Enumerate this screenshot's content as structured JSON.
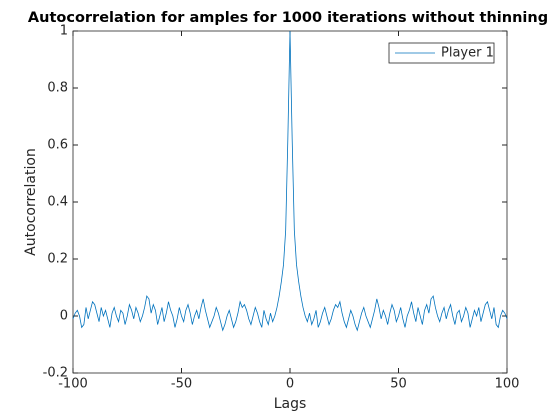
{
  "chart_data": {
    "type": "line",
    "title": "Autocorrelation for amples for 1000 iterations without thinning",
    "xlabel": "Lags",
    "ylabel": "Autocorrelation",
    "x": [
      -100,
      -99,
      -98,
      -97,
      -96,
      -95,
      -94,
      -93,
      -92,
      -91,
      -90,
      -89,
      -88,
      -87,
      -86,
      -85,
      -84,
      -83,
      -82,
      -81,
      -80,
      -79,
      -78,
      -77,
      -76,
      -75,
      -74,
      -73,
      -72,
      -71,
      -70,
      -69,
      -68,
      -67,
      -66,
      -65,
      -64,
      -63,
      -62,
      -61,
      -60,
      -59,
      -58,
      -57,
      -56,
      -55,
      -54,
      -53,
      -52,
      -51,
      -50,
      -49,
      -48,
      -47,
      -46,
      -45,
      -44,
      -43,
      -42,
      -41,
      -40,
      -39,
      -38,
      -37,
      -36,
      -35,
      -34,
      -33,
      -32,
      -31,
      -30,
      -29,
      -28,
      -27,
      -26,
      -25,
      -24,
      -23,
      -22,
      -21,
      -20,
      -19,
      -18,
      -17,
      -16,
      -15,
      -14,
      -13,
      -12,
      -11,
      -10,
      -9,
      -8,
      -7,
      -6,
      -5,
      -4,
      -3,
      -2,
      -1,
      0,
      1,
      2,
      3,
      4,
      5,
      6,
      7,
      8,
      9,
      10,
      11,
      12,
      13,
      14,
      15,
      16,
      17,
      18,
      19,
      20,
      21,
      22,
      23,
      24,
      25,
      26,
      27,
      28,
      29,
      30,
      31,
      32,
      33,
      34,
      35,
      36,
      37,
      38,
      39,
      40,
      41,
      42,
      43,
      44,
      45,
      46,
      47,
      48,
      49,
      50,
      51,
      52,
      53,
      54,
      55,
      56,
      57,
      58,
      59,
      60,
      61,
      62,
      63,
      64,
      65,
      66,
      67,
      68,
      69,
      70,
      71,
      72,
      73,
      74,
      75,
      76,
      77,
      78,
      79,
      80,
      81,
      82,
      83,
      84,
      85,
      86,
      87,
      88,
      89,
      90,
      91,
      92,
      93,
      94,
      95,
      96,
      97,
      98,
      99,
      100
    ],
    "series": [
      {
        "name": "Player 1",
        "color": "#0072bd",
        "values": [
          -0.01,
          0.01,
          0.02,
          0.0,
          -0.04,
          -0.03,
          0.03,
          -0.01,
          0.02,
          0.05,
          0.04,
          0.01,
          -0.02,
          0.03,
          0.0,
          0.02,
          -0.01,
          -0.04,
          0.01,
          0.03,
          0.0,
          -0.02,
          0.02,
          0.01,
          -0.03,
          0.0,
          0.04,
          0.02,
          -0.01,
          0.03,
          0.01,
          -0.02,
          0.0,
          0.03,
          0.07,
          0.06,
          0.01,
          0.04,
          0.02,
          -0.03,
          0.0,
          0.03,
          -0.02,
          0.01,
          0.05,
          0.02,
          0.0,
          -0.04,
          -0.01,
          0.03,
          0.0,
          -0.02,
          0.02,
          0.04,
          0.01,
          -0.03,
          0.0,
          0.02,
          -0.01,
          0.03,
          0.06,
          0.02,
          -0.01,
          -0.04,
          -0.02,
          0.0,
          0.03,
          0.01,
          -0.02,
          -0.05,
          -0.03,
          0.0,
          0.02,
          -0.01,
          -0.04,
          -0.02,
          0.01,
          0.05,
          0.03,
          0.04,
          0.02,
          -0.01,
          -0.03,
          0.0,
          0.03,
          0.01,
          -0.02,
          -0.04,
          0.02,
          -0.01,
          -0.03,
          0.01,
          -0.02,
          0.0,
          0.03,
          0.07,
          0.12,
          0.18,
          0.3,
          0.62,
          1,
          0.62,
          0.3,
          0.18,
          0.12,
          0.07,
          0.03,
          0.0,
          -0.02,
          0.01,
          -0.03,
          -0.01,
          0.02,
          -0.04,
          -0.02,
          0.01,
          0.03,
          0.0,
          -0.03,
          -0.01,
          0.02,
          0.04,
          0.03,
          0.05,
          0.01,
          -0.02,
          -0.04,
          -0.01,
          0.02,
          0.0,
          -0.03,
          -0.05,
          -0.02,
          0.01,
          0.03,
          0.0,
          -0.02,
          -0.04,
          -0.01,
          0.02,
          0.06,
          0.03,
          -0.01,
          0.02,
          0.0,
          -0.03,
          0.01,
          0.04,
          0.02,
          -0.02,
          0.0,
          0.03,
          -0.01,
          -0.04,
          0.0,
          0.02,
          0.05,
          0.01,
          -0.02,
          0.03,
          0.0,
          -0.03,
          0.02,
          0.04,
          0.01,
          0.06,
          0.07,
          0.03,
          0.0,
          -0.02,
          0.01,
          0.03,
          -0.01,
          0.02,
          0.04,
          0.0,
          -0.03,
          0.01,
          0.02,
          -0.02,
          0.0,
          0.03,
          0.01,
          -0.04,
          -0.01,
          0.02,
          0.0,
          0.03,
          -0.02,
          0.01,
          0.04,
          0.05,
          0.02,
          -0.01,
          0.03,
          -0.03,
          -0.04,
          0.0,
          0.02,
          0.01,
          -0.01
        ]
      }
    ],
    "xlim": [
      -100,
      100
    ],
    "xticks": [
      -100,
      -50,
      0,
      50,
      100
    ],
    "ylim": [
      -0.2,
      1
    ],
    "yticks": [
      -0.2,
      0,
      0.2,
      0.4,
      0.6,
      0.8,
      1
    ],
    "grid": false,
    "legend": "northeast"
  }
}
